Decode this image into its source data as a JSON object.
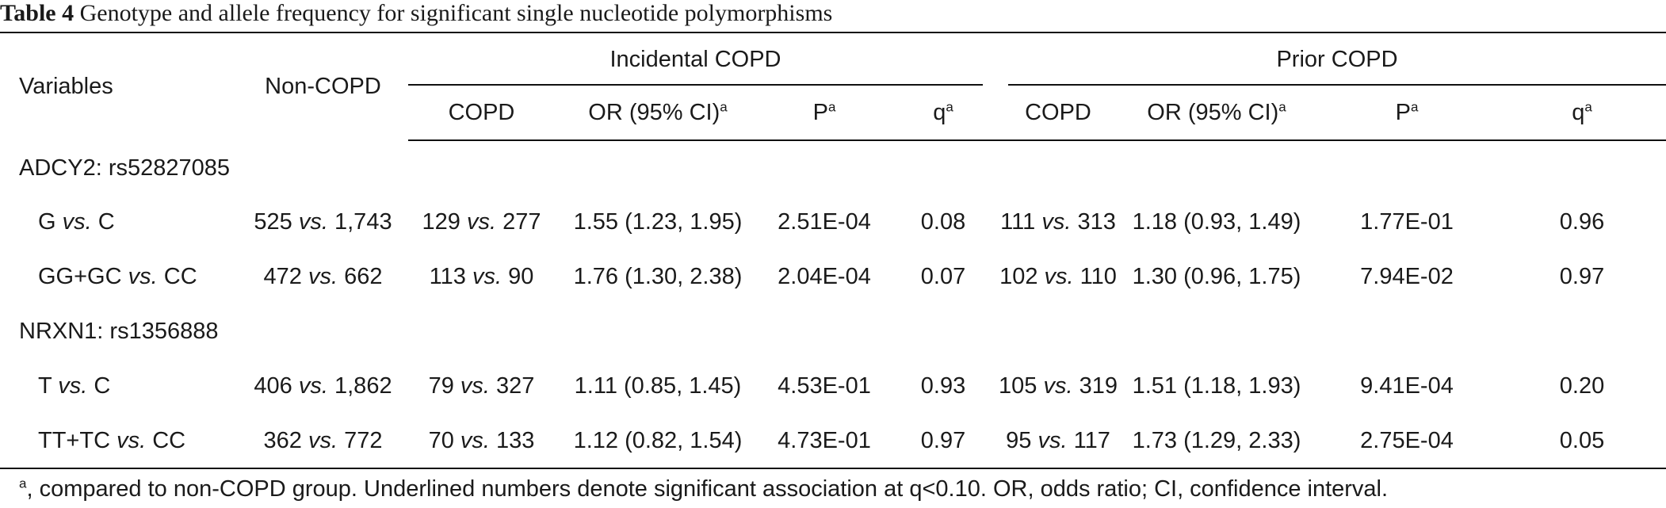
{
  "caption": {
    "label": "Table 4",
    "text": "Genotype and allele frequency for significant single nucleotide polymorphisms"
  },
  "header": {
    "variables": "Variables",
    "non_copd": "Non-COPD",
    "incidental_group": "Incidental COPD",
    "prior_group": "Prior COPD",
    "copd": "COPD",
    "or_ci": "OR (95% CI)",
    "p": "P",
    "q": "q",
    "sup_mark": "a"
  },
  "vs_word": "vs.",
  "groups": [
    {
      "name": "ADCY2: rs52827085",
      "rows": [
        {
          "v1": "G",
          "v2": "C",
          "n1": "525",
          "n2": "1,743",
          "inc_a": "129",
          "inc_b": "277",
          "inc_or": "1.55 (1.23, 1.95)",
          "inc_p": "2.51E-04",
          "inc_q": "0.08",
          "pri_a": "111",
          "pri_b": "313",
          "pri_or": "1.18 (0.93, 1.49)",
          "pri_p": "1.77E-01",
          "pri_q": "0.96"
        },
        {
          "v1": "GG+GC",
          "v2": "CC",
          "n1": "472",
          "n2": "662",
          "inc_a": "113",
          "inc_b": "90",
          "inc_or": "1.76 (1.30, 2.38)",
          "inc_p": "2.04E-04",
          "inc_q": "0.07",
          "pri_a": "102",
          "pri_b": "110",
          "pri_or": "1.30 (0.96, 1.75)",
          "pri_p": "7.94E-02",
          "pri_q": "0.97"
        }
      ]
    },
    {
      "name": "NRXN1: rs1356888",
      "rows": [
        {
          "v1": "T",
          "v2": "C",
          "n1": "406",
          "n2": "1,862",
          "inc_a": "79",
          "inc_b": "327",
          "inc_or": "1.11 (0.85, 1.45)",
          "inc_p": "4.53E-01",
          "inc_q": "0.93",
          "pri_a": "105",
          "pri_b": "319",
          "pri_or": "1.51 (1.18, 1.93)",
          "pri_p": "9.41E-04",
          "pri_q": "0.20"
        },
        {
          "v1": "TT+TC",
          "v2": "CC",
          "n1": "362",
          "n2": "772",
          "inc_a": "70",
          "inc_b": "133",
          "inc_or": "1.12 (0.82, 1.54)",
          "inc_p": "4.73E-01",
          "inc_q": "0.97",
          "pri_a": "95",
          "pri_b": "117",
          "pri_or": "1.73 (1.29, 2.33)",
          "pri_p": "2.75E-04",
          "pri_q": "0.05"
        }
      ]
    }
  ],
  "footnote": {
    "mark": "a",
    "text": ", compared to non-COPD group. Underlined numbers denote significant association at q<0.10. OR, odds ratio; CI, confidence interval."
  }
}
